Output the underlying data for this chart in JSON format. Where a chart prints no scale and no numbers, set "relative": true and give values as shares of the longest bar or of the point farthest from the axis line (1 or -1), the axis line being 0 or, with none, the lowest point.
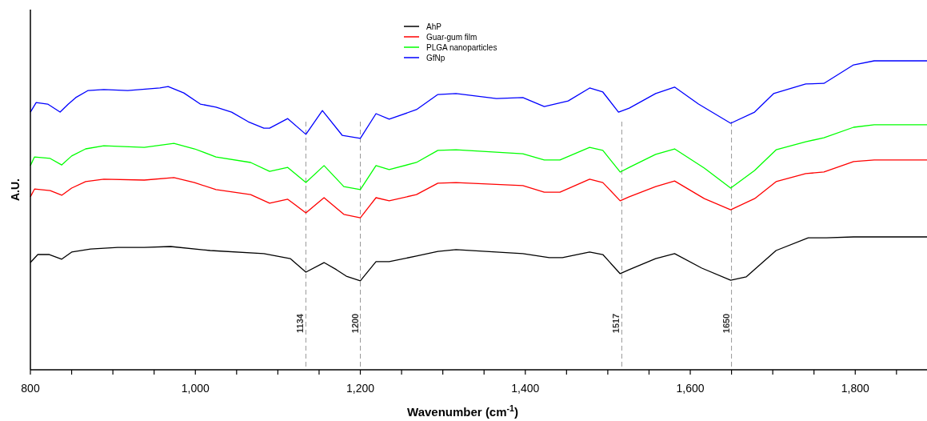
{
  "chart_data": {
    "type": "line",
    "relative": true,
    "xlabel": "Wavenumber (cm$^{-1}$)",
    "ylabel": "A.U.",
    "legend": "top",
    "xlim": [
      800,
      1887
    ],
    "xticks": [
      800,
      {
        "value": 850,
        "label": null
      },
      {
        "value": 900,
        "label": null
      },
      {
        "value": 950,
        "label": null
      },
      {
        "value": 1000,
        "label": "1,000"
      },
      {
        "value": 1050,
        "label": null
      },
      {
        "value": 1100,
        "label": null
      },
      {
        "value": 1150,
        "label": null
      },
      {
        "value": 1200,
        "label": "1,200"
      },
      {
        "value": 1250,
        "label": null
      },
      {
        "value": 1300,
        "label": null
      },
      {
        "value": 1350,
        "label": null
      },
      {
        "value": 1400,
        "label": "1,400"
      },
      {
        "value": 1450,
        "label": null
      },
      {
        "value": 1500,
        "label": null
      },
      {
        "value": 1550,
        "label": null
      },
      {
        "value": 1600,
        "label": "1,600"
      },
      {
        "value": 1650,
        "label": null
      },
      {
        "value": 1700,
        "label": null
      },
      {
        "value": 1750,
        "label": null
      },
      {
        "value": 1800,
        "label": "1,800"
      },
      {
        "value": 1850,
        "label": null
      }
    ],
    "ref_lines": [
      {
        "axis": "x",
        "value": 1134,
        "label": "1134",
        "color": "#999999",
        "line_style": "dashed"
      },
      {
        "axis": "x",
        "value": 1200,
        "label": "1200",
        "color": "#999999",
        "line_style": "dashed"
      },
      {
        "axis": "x",
        "value": 1517,
        "label": "1517",
        "color": "#999999",
        "line_style": "dashed"
      },
      {
        "axis": "x",
        "value": 1650,
        "label": "1650",
        "color": "#999999",
        "line_style": "dashed"
      }
    ],
    "series": [
      {
        "name": "AhP",
        "color": "#000000",
        "x": [
          800,
          809,
          823,
          838,
          850,
          873,
          906,
          938,
          970,
          1018,
          1083,
          1115,
          1134,
          1156,
          1171,
          1183,
          1200,
          1219,
          1235,
          1268,
          1294,
          1316,
          1397,
          1429,
          1445,
          1478,
          1494,
          1515,
          1526,
          1558,
          1581,
          1614,
          1649,
          1668,
          1704,
          1743,
          1765,
          1798,
          1887
        ],
        "values": [
          0.347,
          0.373,
          0.373,
          0.358,
          0.381,
          0.391,
          0.396,
          0.396,
          0.399,
          0.386,
          0.376,
          0.36,
          0.316,
          0.347,
          0.324,
          0.303,
          0.288,
          0.35,
          0.35,
          0.368,
          0.383,
          0.389,
          0.376,
          0.363,
          0.363,
          0.381,
          0.373,
          0.311,
          0.324,
          0.36,
          0.376,
          0.329,
          0.29,
          0.301,
          0.386,
          0.427,
          0.427,
          0.43,
          0.43
        ]
      },
      {
        "name": "Guar-gum film",
        "color": "#ff0000",
        "x": [
          800,
          805,
          824,
          838,
          850,
          867,
          889,
          938,
          974,
          999,
          1025,
          1067,
          1090,
          1112,
          1134,
          1156,
          1180,
          1200,
          1219,
          1235,
          1268,
          1294,
          1316,
          1397,
          1423,
          1442,
          1478,
          1494,
          1515,
          1526,
          1558,
          1581,
          1617,
          1649,
          1678,
          1704,
          1740,
          1762,
          1798,
          1823,
          1887
        ],
        "values": [
          0.56,
          0.585,
          0.58,
          0.565,
          0.588,
          0.609,
          0.617,
          0.614,
          0.622,
          0.606,
          0.583,
          0.567,
          0.539,
          0.552,
          0.508,
          0.557,
          0.503,
          0.492,
          0.557,
          0.547,
          0.567,
          0.604,
          0.606,
          0.596,
          0.575,
          0.575,
          0.617,
          0.606,
          0.547,
          0.56,
          0.593,
          0.611,
          0.554,
          0.518,
          0.554,
          0.609,
          0.635,
          0.64,
          0.674,
          0.679,
          0.679
        ]
      },
      {
        "name": "PLGA nanoparticles",
        "color": "#00ff00",
        "x": [
          800,
          805,
          824,
          838,
          850,
          867,
          889,
          938,
          974,
          999,
          1025,
          1067,
          1090,
          1112,
          1134,
          1156,
          1180,
          1200,
          1219,
          1235,
          1268,
          1294,
          1316,
          1397,
          1423,
          1442,
          1478,
          1494,
          1515,
          1526,
          1558,
          1581,
          1617,
          1649,
          1678,
          1704,
          1740,
          1762,
          1798,
          1823,
          1887
        ],
        "values": [
          0.661,
          0.689,
          0.684,
          0.663,
          0.692,
          0.715,
          0.725,
          0.72,
          0.733,
          0.715,
          0.689,
          0.671,
          0.642,
          0.655,
          0.606,
          0.661,
          0.593,
          0.583,
          0.661,
          0.648,
          0.671,
          0.71,
          0.712,
          0.699,
          0.679,
          0.679,
          0.72,
          0.71,
          0.64,
          0.655,
          0.697,
          0.715,
          0.653,
          0.588,
          0.645,
          0.712,
          0.738,
          0.751,
          0.785,
          0.793,
          0.793
        ]
      },
      {
        "name": "GfNp",
        "color": "#0000ff",
        "x": [
          800,
          807,
          821,
          836,
          846,
          855,
          870,
          889,
          918,
          957,
          967,
          986,
          1006,
          1025,
          1044,
          1064,
          1083,
          1090,
          1112,
          1134,
          1154,
          1178,
          1200,
          1219,
          1235,
          1268,
          1294,
          1316,
          1365,
          1397,
          1423,
          1452,
          1478,
          1494,
          1513,
          1526,
          1558,
          1581,
          1610,
          1649,
          1678,
          1701,
          1740,
          1762,
          1798,
          1823,
          1887
        ],
        "values": [
          0.834,
          0.865,
          0.86,
          0.834,
          0.86,
          0.881,
          0.904,
          0.907,
          0.904,
          0.912,
          0.917,
          0.896,
          0.86,
          0.85,
          0.834,
          0.803,
          0.782,
          0.782,
          0.813,
          0.762,
          0.839,
          0.759,
          0.749,
          0.829,
          0.811,
          0.842,
          0.891,
          0.894,
          0.878,
          0.881,
          0.852,
          0.87,
          0.912,
          0.899,
          0.834,
          0.847,
          0.894,
          0.915,
          0.86,
          0.798,
          0.834,
          0.894,
          0.925,
          0.927,
          0.987,
          1,
          1
        ]
      }
    ]
  }
}
